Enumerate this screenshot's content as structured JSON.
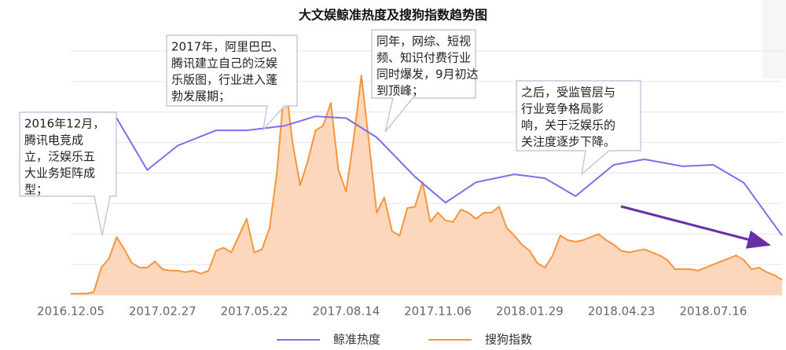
{
  "chart_data": {
    "type": "line",
    "title": "大文娱鲸准热度及搜狗指数趋势图",
    "xlim": [
      0,
      93
    ],
    "xticks": [
      {
        "value": 0,
        "label": "2016.12.05"
      },
      {
        "value": 12,
        "label": "2017.02.27"
      },
      {
        "value": 24,
        "label": "2017.05.22"
      },
      {
        "value": 36,
        "label": "2017.08.14"
      },
      {
        "value": 48,
        "label": "2017.11.06"
      },
      {
        "value": 60,
        "label": "2018.01.29"
      },
      {
        "value": 72,
        "label": "2018.04.23"
      },
      {
        "value": 84,
        "label": "2018.07.16"
      }
    ],
    "ylim": [
      0,
      80
    ],
    "ygrid": [
      0,
      10,
      20,
      30,
      40,
      50,
      60,
      70,
      80
    ],
    "grid": true,
    "legend": "bottom",
    "series": [
      {
        "name": "鲸准热度",
        "color": "#7f6cf0",
        "fill": null,
        "x": [
          6,
          10,
          14,
          19,
          23,
          28,
          32,
          36,
          40,
          45,
          49,
          53,
          58,
          62,
          66,
          71,
          75,
          80,
          84,
          88,
          93
        ],
        "values": [
          58,
          41,
          49,
          54,
          54,
          55.5,
          58.6,
          58,
          51.7,
          38.8,
          30.3,
          37,
          39.6,
          38.3,
          32.4,
          42.7,
          44.5,
          42.2,
          42.7,
          36.8,
          19.5
        ]
      },
      {
        "name": "搜狗指数",
        "color": "#f5963e",
        "fill": "#fcd7bb",
        "x": [
          0,
          1,
          2,
          3,
          4,
          5,
          6,
          7,
          8,
          9,
          10,
          11,
          12,
          13,
          14,
          15,
          16,
          17,
          18,
          19,
          20,
          21,
          22,
          23,
          24,
          25,
          26,
          27,
          28,
          29,
          30,
          31,
          32,
          33,
          34,
          35,
          36,
          37,
          38,
          39,
          40,
          41,
          42,
          43,
          44,
          45,
          46,
          47,
          48,
          49,
          50,
          51,
          52,
          53,
          54,
          55,
          56,
          57,
          58,
          59,
          60,
          61,
          62,
          63,
          64,
          65,
          66,
          67,
          68,
          69,
          70,
          71,
          72,
          73,
          74,
          75,
          76,
          77,
          78,
          79,
          80,
          81,
          82,
          83,
          84,
          85,
          86,
          87,
          88,
          89,
          90,
          91,
          92,
          93
        ],
        "values": [
          0.5,
          0.5,
          0.5,
          1,
          9,
          12,
          19,
          15,
          10.5,
          9,
          9,
          11,
          8.5,
          8,
          8,
          7.5,
          8,
          7,
          8,
          14.5,
          15.5,
          14,
          19.5,
          25,
          14,
          15,
          22,
          41,
          71,
          50,
          36,
          44,
          54,
          55.5,
          63,
          41,
          34,
          51.5,
          72,
          50,
          27,
          32,
          21,
          19.5,
          28.5,
          29,
          37,
          24,
          27,
          24.5,
          24,
          28,
          27,
          25,
          27,
          27,
          29,
          22,
          19.5,
          16.5,
          14.5,
          10.5,
          9,
          13,
          19.5,
          18,
          17.5,
          18,
          19,
          20,
          18,
          16.5,
          14.5,
          14,
          14.5,
          15,
          14,
          13,
          11.5,
          8.5,
          8.5,
          8.5,
          8,
          9,
          10,
          11,
          12,
          13,
          11.5,
          8.5,
          9,
          7.5,
          6.5,
          5
        ]
      }
    ],
    "annotations": [
      {
        "lines": [
          "2016年12月，",
          "腾讯电竞成",
          "立，泛娱乐五",
          "大业务矩阵成",
          "型；"
        ]
      },
      {
        "lines": [
          "2017年，阿里巴巴、",
          "腾讯建立自己的泛娱",
          "乐版图，行业进入蓬",
          "勃发展期；"
        ]
      },
      {
        "lines": [
          "同年，网综、短视",
          "频、知识付费行业",
          "同时爆发，9月初达",
          "到顶峰；"
        ]
      },
      {
        "lines": [
          "之后，受监管层与",
          "行业竞争格局影",
          "响，关于泛娱乐的",
          "关注度逐步下降。"
        ]
      }
    ]
  }
}
